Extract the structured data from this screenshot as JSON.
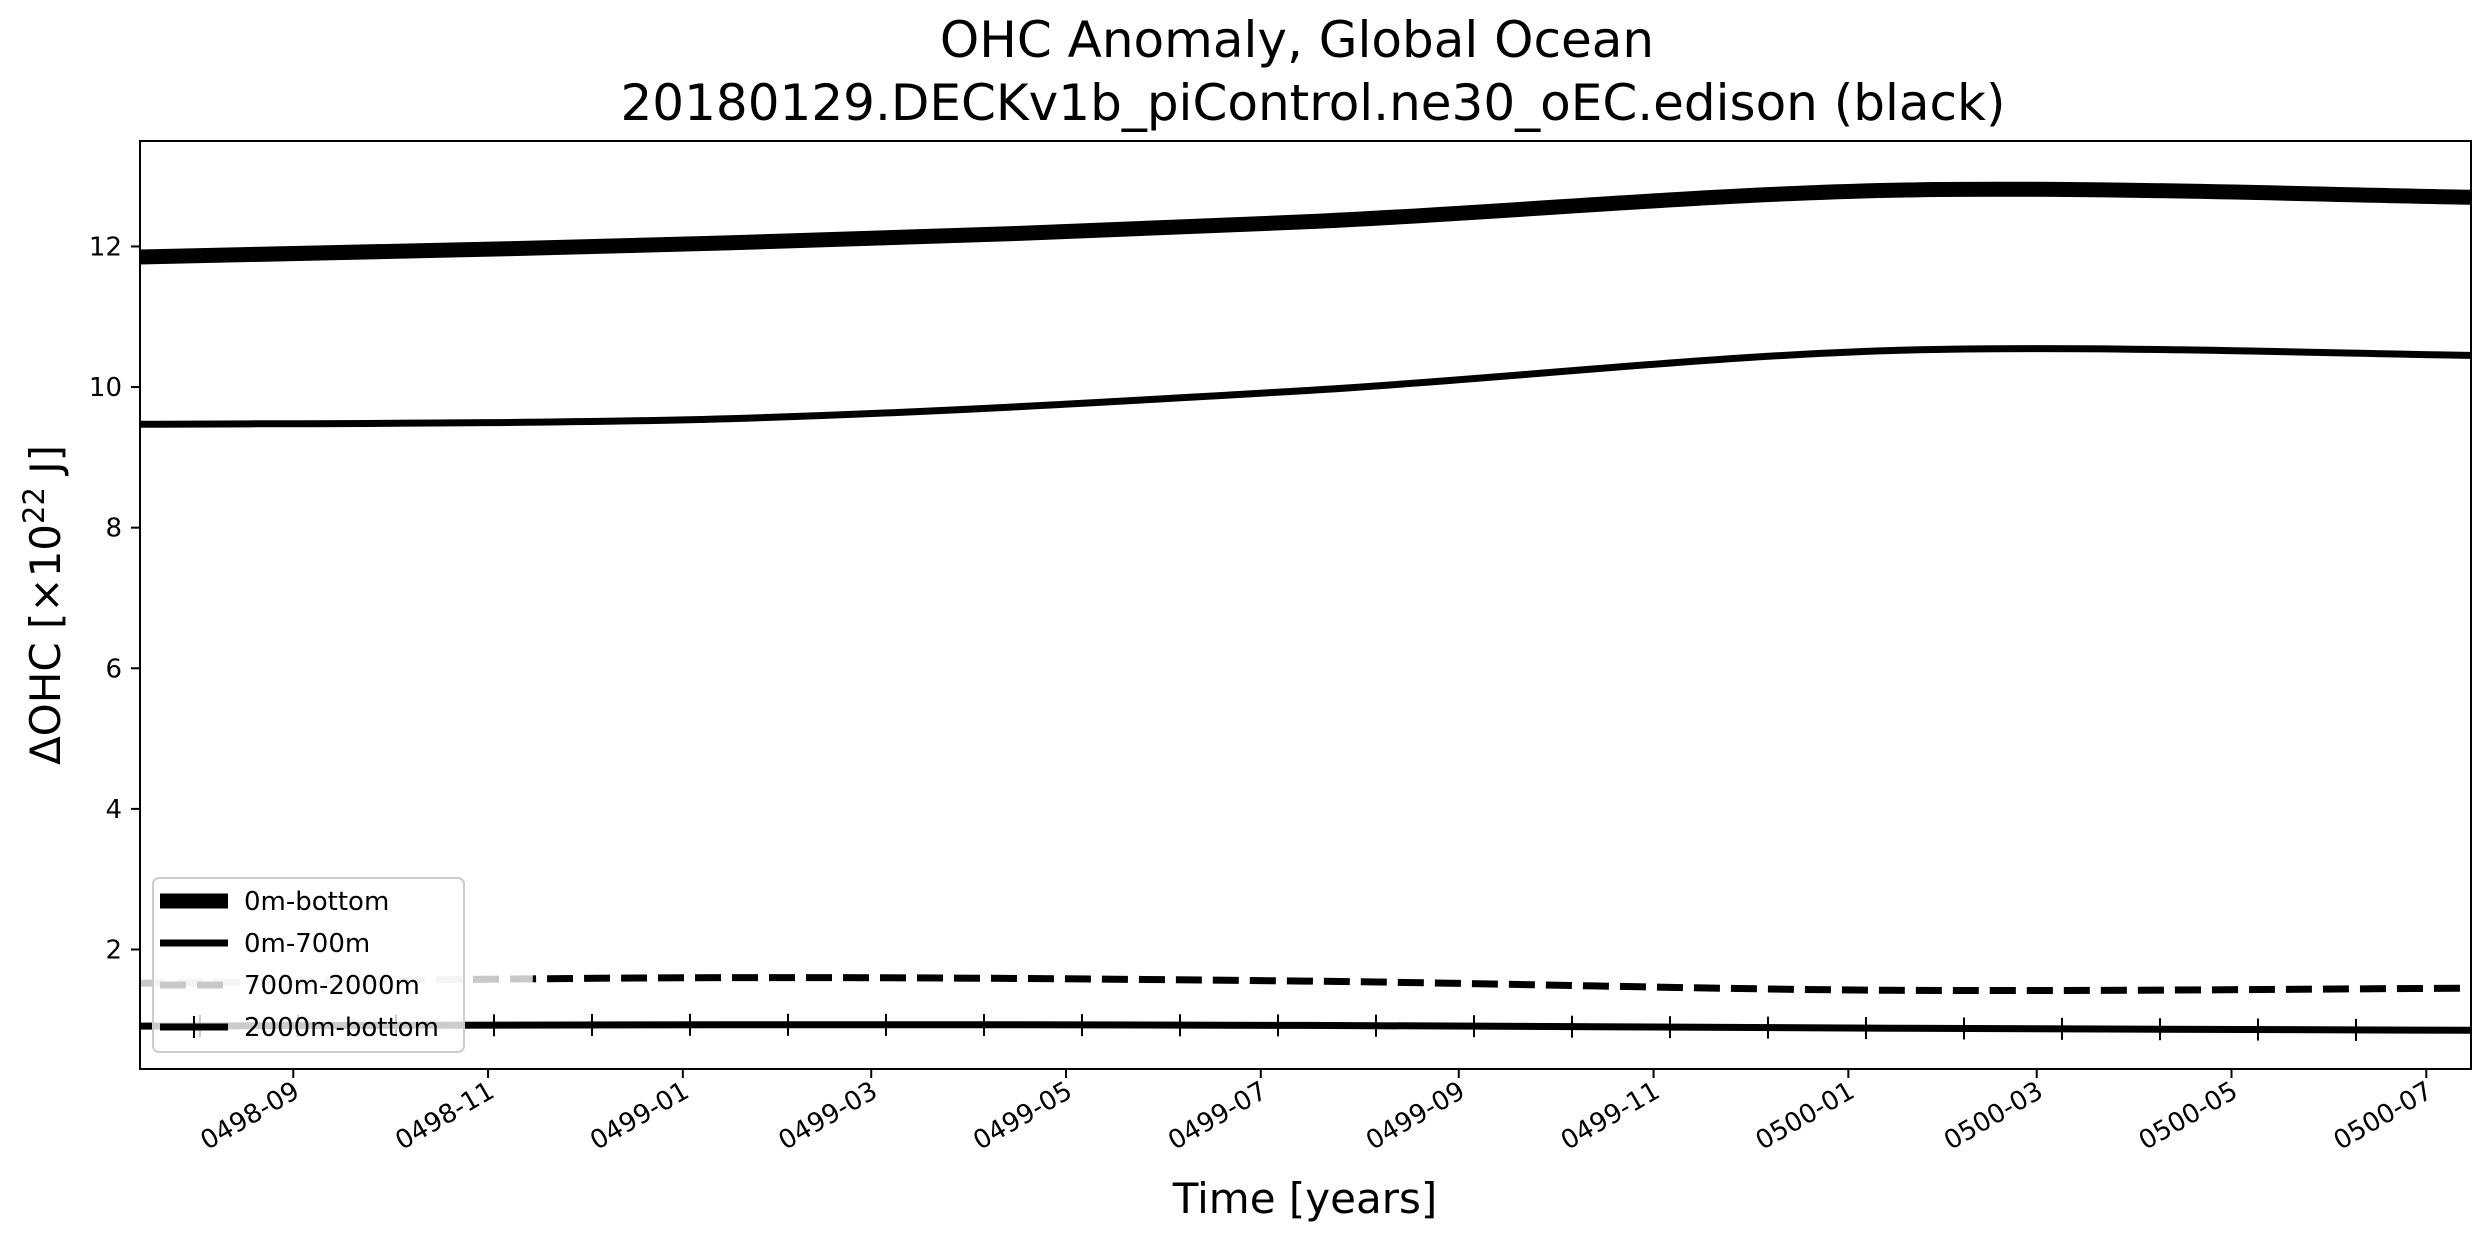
{
  "chart_data": {
    "type": "line",
    "title": "OHC Anomaly, Global Ocean",
    "subtitle": "20180129.DECKv1b_piControl.ne30_oEC.edison (black)",
    "xlabel": "Time [years]",
    "ylabel_main": "ΔOHC [×10",
    "ylabel_exp": "22",
    "ylabel_tail": " J]",
    "xlim": [
      "0498-07-15",
      "0500-07-15"
    ],
    "ylim": [
      0.3,
      13.5
    ],
    "x_ticks": [
      "0498-09",
      "0498-11",
      "0499-01",
      "0499-03",
      "0499-05",
      "0499-07",
      "0499-09",
      "0499-11",
      "0500-01",
      "0500-03",
      "0500-05",
      "0500-07"
    ],
    "y_ticks": [
      "2",
      "4",
      "6",
      "8",
      "10",
      "12"
    ],
    "legend_position": "lower-left",
    "x": [
      "0498-07-15",
      "0499-01-15",
      "0499-07-15",
      "0500-01-15",
      "0500-07-15"
    ],
    "series": [
      {
        "name": "0m-bottom",
        "color": "#000000",
        "style": "solid",
        "values": [
          11.85,
          12.05,
          12.35,
          12.8,
          12.7
        ]
      },
      {
        "name": "0m-700m",
        "color": "#000000",
        "style": "solid",
        "values": [
          9.47,
          9.55,
          9.95,
          10.52,
          10.45
        ]
      },
      {
        "name": "700m-2000m",
        "color": "#000000",
        "style": "dashed",
        "values": [
          1.52,
          1.6,
          1.55,
          1.42,
          1.45
        ]
      },
      {
        "name": "2000m-bottom",
        "color": "#000000",
        "style": "solid-ticked",
        "values": [
          0.91,
          0.93,
          0.92,
          0.88,
          0.85
        ]
      }
    ]
  }
}
